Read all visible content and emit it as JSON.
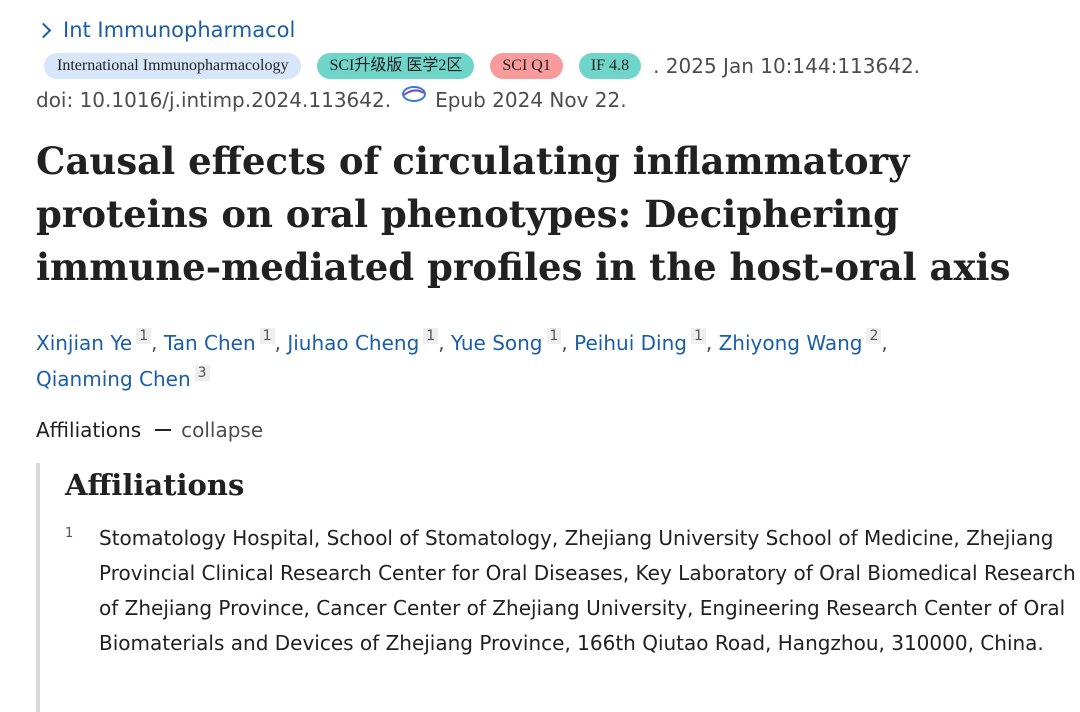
{
  "journal": {
    "link_label": "Int Immunopharmacol",
    "chevron_icon": "chevron-right-icon"
  },
  "citation": {
    "badges": [
      {
        "label": "International Immunopharmacology",
        "color": "#d7e6fb"
      },
      {
        "label": "SCI升级版 医学2区",
        "color": "#6fd4c9"
      },
      {
        "label": "SCI Q1",
        "color": "#f99b9b"
      },
      {
        "label": "IF 4.8",
        "color": "#6fd4c9"
      }
    ],
    "date_volume": ". 2025 Jan 10:144:113642.",
    "doi": "doi: 10.1016/j.intimp.2024.113642.",
    "epub_icon": "epub-icon",
    "epub": "Epub 2024 Nov 22."
  },
  "article": {
    "title": "Causal effects of circulating inflammatory proteins on oral phenotypes: Deciphering immune-mediated profiles in the host-oral axis"
  },
  "authors": [
    {
      "name": "Xinjian Ye",
      "aff": "1"
    },
    {
      "name": "Tan Chen",
      "aff": "1"
    },
    {
      "name": "Jiuhao Cheng",
      "aff": "1"
    },
    {
      "name": "Yue Song",
      "aff": "1"
    },
    {
      "name": "Peihui Ding",
      "aff": "1"
    },
    {
      "name": "Zhiyong Wang",
      "aff": "2"
    },
    {
      "name": "Qianming Chen",
      "aff": "3"
    }
  ],
  "affiliations_toggle": {
    "label": "Affiliations",
    "action": "collapse"
  },
  "affiliations": {
    "heading": "Affiliations",
    "items": [
      {
        "number": "1",
        "text": "Stomatology Hospital, School of Stomatology, Zhejiang University School of Medicine, Zhejiang Provincial Clinical Research Center for Oral Diseases, Key Laboratory of Oral Biomedical Research of Zhejiang Province, Cancer Center of Zhejiang University, Engineering Research Center of Oral Biomaterials and Devices of Zhejiang Province, 166th Qiutao Road, Hangzhou, 310000, China."
      }
    ]
  },
  "colors": {
    "link": "#1a5ea8",
    "text": "#212121",
    "muted": "#4d4d4d"
  }
}
